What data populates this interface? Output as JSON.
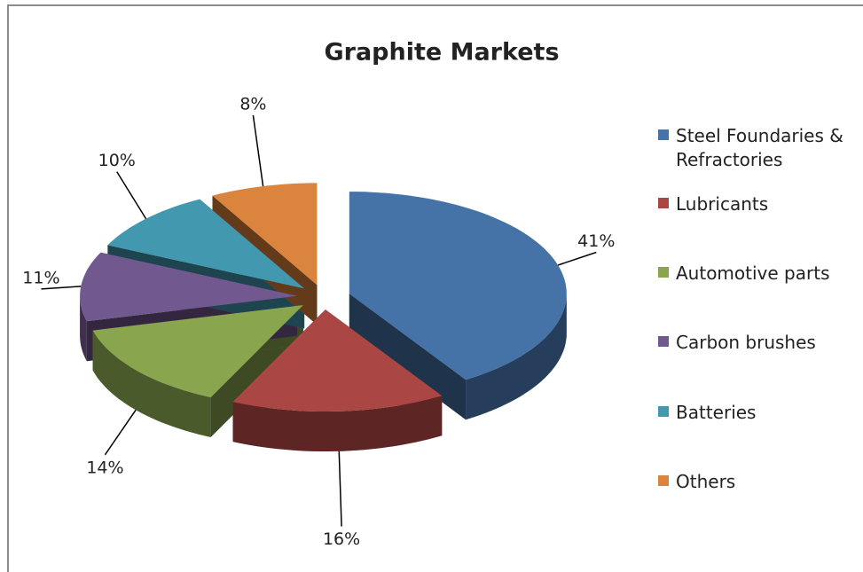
{
  "chart_data": {
    "type": "pie3d",
    "title": "Graphite Markets",
    "categories": [
      "Steel Foundaries & Refractories",
      "Lubricants",
      "Automotive parts",
      "Carbon brushes",
      "Batteries",
      "Others"
    ],
    "values": [
      41,
      16,
      14,
      11,
      10,
      8
    ],
    "value_labels": [
      "41%",
      "16%",
      "14%",
      "11%",
      "10%",
      "8%"
    ],
    "colors": [
      "#4572a7",
      "#aa4643",
      "#89a54e",
      "#71588f",
      "#4198af",
      "#db843d"
    ],
    "legend": "right"
  }
}
